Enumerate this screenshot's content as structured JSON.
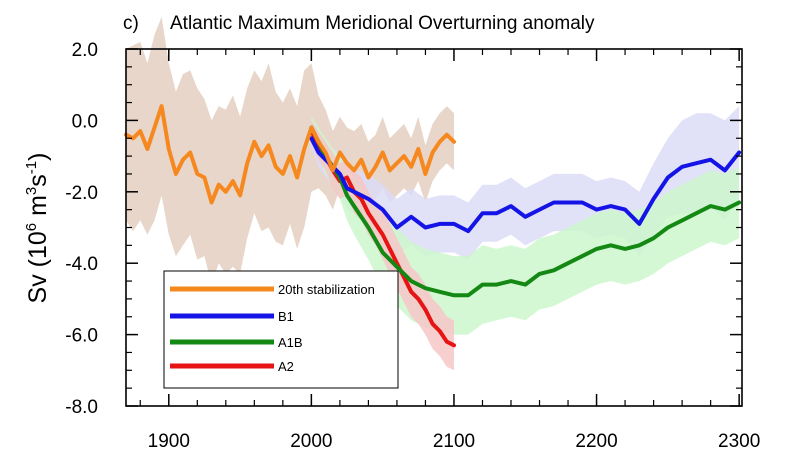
{
  "chart_data": {
    "type": "line",
    "panel_label": "c)",
    "title": "Atlantic Maximum Meridional Overturning anomaly",
    "xlabel": "",
    "ylabel": {
      "base": "Sv (10",
      "exp1": "6",
      "mid": " m",
      "exp2": "3",
      "s": "s",
      "exp3": "-1",
      "end": ")"
    },
    "xlim": [
      1870,
      2302
    ],
    "ylim": [
      -8,
      2
    ],
    "x_ticks": [
      1900,
      2000,
      2100,
      2200,
      2300
    ],
    "x_tick_labels": [
      "1900",
      "2000",
      "2100",
      "2200",
      "2300"
    ],
    "y_ticks": [
      -8,
      -6,
      -4,
      -2,
      0,
      2
    ],
    "y_tick_labels": [
      "-8.0",
      "-6.0",
      "-4.0",
      "-2.0",
      "0.0",
      "2.0"
    ],
    "legend_position": "lower-left",
    "series": [
      {
        "name": "20th stabilization",
        "color": "#f5891f",
        "band_color": "#e3cfc0",
        "x": [
          1870,
          1875,
          1880,
          1885,
          1890,
          1895,
          1900,
          1905,
          1910,
          1915,
          1920,
          1925,
          1930,
          1935,
          1940,
          1945,
          1950,
          1955,
          1960,
          1965,
          1970,
          1975,
          1980,
          1985,
          1990,
          1995,
          2000,
          2005,
          2010,
          2015,
          2020,
          2025,
          2030,
          2035,
          2040,
          2045,
          2050,
          2055,
          2060,
          2065,
          2070,
          2075,
          2080,
          2085,
          2090,
          2095,
          2100
        ],
        "values": [
          -0.4,
          -0.5,
          -0.3,
          -0.8,
          -0.2,
          0.4,
          -0.8,
          -1.5,
          -1.1,
          -0.9,
          -1.5,
          -1.6,
          -2.3,
          -1.8,
          -2.0,
          -1.7,
          -2.1,
          -1.2,
          -0.6,
          -1.0,
          -0.7,
          -1.3,
          -1.5,
          -1.0,
          -1.6,
          -0.8,
          -0.2,
          -0.6,
          -0.9,
          -1.4,
          -0.9,
          -1.2,
          -1.4,
          -1.1,
          -1.6,
          -1.3,
          -0.9,
          -1.4,
          -1.2,
          -1.0,
          -1.3,
          -0.8,
          -1.5,
          -0.9,
          -0.6,
          -0.4,
          -0.6
        ],
        "band_half_width": [
          2.4,
          2.6,
          2.5,
          2.4,
          2.6,
          2.5,
          2.4,
          2.3,
          2.4,
          2.3,
          2.4,
          2.2,
          2.3,
          2.2,
          2.3,
          2.4,
          2.2,
          2.1,
          2.0,
          2.1,
          2.3,
          2.1,
          2.0,
          1.9,
          2.0,
          2.2,
          1.8,
          1.3,
          1.2,
          1.1,
          1.0,
          1.0,
          1.1,
          1.0,
          1.0,
          0.9,
          1.0,
          0.9,
          0.9,
          0.9,
          0.8,
          0.9,
          0.8,
          0.8,
          0.8,
          0.8,
          0.8
        ]
      },
      {
        "name": "B1",
        "color": "#1414e6",
        "band_color": "#dcdcf7",
        "x": [
          2000,
          2005,
          2010,
          2015,
          2020,
          2025,
          2030,
          2040,
          2050,
          2060,
          2070,
          2080,
          2090,
          2100,
          2110,
          2120,
          2130,
          2140,
          2150,
          2160,
          2170,
          2180,
          2190,
          2200,
          2210,
          2220,
          2230,
          2240,
          2250,
          2260,
          2270,
          2280,
          2290,
          2300
        ],
        "values": [
          -0.5,
          -0.9,
          -1.1,
          -1.3,
          -1.5,
          -1.9,
          -2.0,
          -2.2,
          -2.5,
          -3.0,
          -2.7,
          -3.0,
          -2.9,
          -2.9,
          -3.1,
          -2.6,
          -2.6,
          -2.4,
          -2.7,
          -2.5,
          -2.3,
          -2.3,
          -2.3,
          -2.5,
          -2.4,
          -2.5,
          -2.9,
          -2.2,
          -1.6,
          -1.3,
          -1.2,
          -1.1,
          -1.4,
          -0.9
        ],
        "band_half_width": [
          0.3,
          0.4,
          0.5,
          0.5,
          0.6,
          0.6,
          0.6,
          0.7,
          0.7,
          0.8,
          0.8,
          0.8,
          0.8,
          0.8,
          0.8,
          0.8,
          0.8,
          0.8,
          0.8,
          0.8,
          0.8,
          0.8,
          0.8,
          0.8,
          0.8,
          0.8,
          0.9,
          1.0,
          1.1,
          1.3,
          1.4,
          1.3,
          1.4,
          1.3
        ]
      },
      {
        "name": "A1B",
        "color": "#138813",
        "band_color": "#cdf7cd",
        "x": [
          2000,
          2005,
          2010,
          2015,
          2020,
          2025,
          2030,
          2040,
          2050,
          2060,
          2070,
          2080,
          2090,
          2100,
          2110,
          2120,
          2130,
          2140,
          2150,
          2160,
          2170,
          2180,
          2190,
          2200,
          2210,
          2220,
          2230,
          2240,
          2250,
          2260,
          2270,
          2280,
          2290,
          2300
        ],
        "values": [
          -0.2,
          -0.6,
          -1.0,
          -1.3,
          -1.6,
          -2.1,
          -2.4,
          -3.0,
          -3.7,
          -4.1,
          -4.5,
          -4.7,
          -4.8,
          -4.9,
          -4.9,
          -4.6,
          -4.6,
          -4.5,
          -4.6,
          -4.3,
          -4.2,
          -4.0,
          -3.8,
          -3.6,
          -3.5,
          -3.6,
          -3.5,
          -3.3,
          -3.0,
          -2.8,
          -2.6,
          -2.4,
          -2.5,
          -2.3
        ],
        "band_half_width": [
          0.3,
          0.4,
          0.5,
          0.5,
          0.6,
          0.7,
          0.8,
          0.9,
          1.0,
          1.1,
          1.1,
          1.1,
          1.1,
          1.1,
          1.1,
          1.1,
          1.0,
          1.0,
          1.0,
          1.0,
          1.0,
          1.0,
          1.0,
          1.0,
          1.0,
          1.0,
          1.0,
          1.0,
          1.0,
          1.0,
          1.0,
          1.0,
          1.0,
          1.0
        ]
      },
      {
        "name": "A2",
        "color": "#e61414",
        "band_color": "#f6c7c7",
        "x": [
          2000,
          2005,
          2010,
          2015,
          2020,
          2025,
          2030,
          2035,
          2040,
          2045,
          2050,
          2055,
          2060,
          2065,
          2070,
          2075,
          2080,
          2085,
          2090,
          2095,
          2100
        ],
        "values": [
          -0.3,
          -0.7,
          -1.0,
          -1.4,
          -1.7,
          -1.6,
          -2.0,
          -2.2,
          -2.6,
          -2.9,
          -3.2,
          -3.6,
          -4.0,
          -4.4,
          -4.8,
          -5.0,
          -5.3,
          -5.7,
          -5.9,
          -6.2,
          -6.3
        ],
        "band_half_width": [
          0.3,
          0.4,
          0.4,
          0.5,
          0.5,
          0.5,
          0.6,
          0.6,
          0.6,
          0.6,
          0.7,
          0.7,
          0.7,
          0.7,
          0.7,
          0.7,
          0.7,
          0.7,
          0.7,
          0.7,
          0.7
        ]
      }
    ]
  }
}
